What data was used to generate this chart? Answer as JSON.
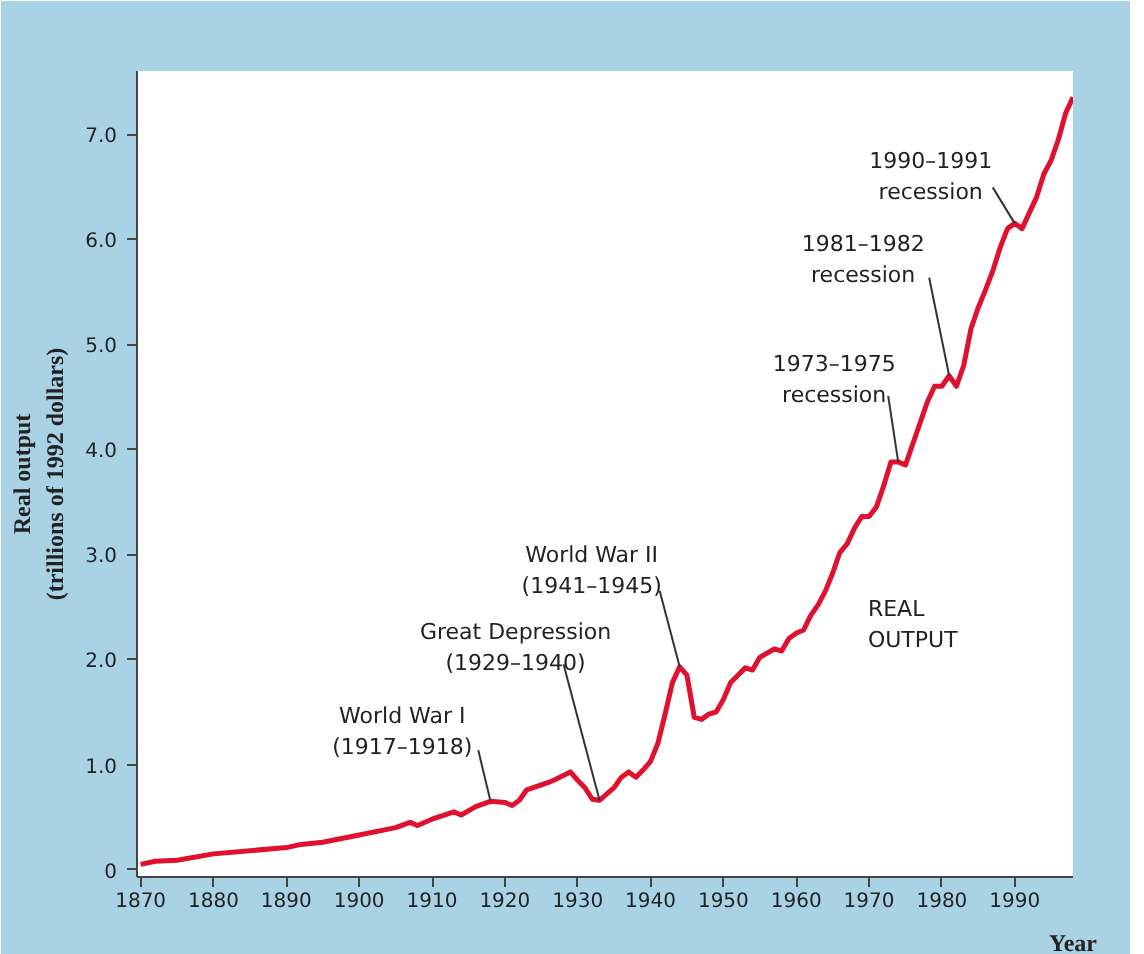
{
  "chart_data": {
    "type": "line",
    "xlabel": "Year",
    "ylabel": "Real output\n(trillions of 1992 dollars)",
    "x": [
      1870,
      1872,
      1875,
      1880,
      1885,
      1890,
      1892,
      1895,
      1900,
      1905,
      1907,
      1908,
      1910,
      1913,
      1914,
      1916,
      1918,
      1920,
      1921,
      1922,
      1923,
      1926,
      1927,
      1929,
      1930,
      1931,
      1932,
      1933,
      1934,
      1935,
      1936,
      1937,
      1938,
      1939,
      1940,
      1941,
      1942,
      1943,
      1944,
      1945,
      1946,
      1947,
      1948,
      1949,
      1950,
      1951,
      1952,
      1953,
      1954,
      1955,
      1956,
      1957,
      1958,
      1959,
      1960,
      1961,
      1962,
      1963,
      1964,
      1965,
      1966,
      1967,
      1968,
      1969,
      1970,
      1971,
      1972,
      1973,
      1974,
      1975,
      1976,
      1977,
      1978,
      1979,
      1980,
      1981,
      1982,
      1983,
      1984,
      1985,
      1986,
      1987,
      1988,
      1989,
      1990,
      1991,
      1992,
      1993,
      1994,
      1995,
      1996,
      1997,
      1998
    ],
    "series": [
      {
        "name": "REAL OUTPUT",
        "color": "#e0102f",
        "values": [
          0.05,
          0.08,
          0.09,
          0.15,
          0.18,
          0.21,
          0.24,
          0.26,
          0.33,
          0.4,
          0.45,
          0.42,
          0.48,
          0.55,
          0.52,
          0.6,
          0.65,
          0.64,
          0.61,
          0.66,
          0.76,
          0.83,
          0.86,
          0.93,
          0.85,
          0.78,
          0.67,
          0.66,
          0.72,
          0.78,
          0.88,
          0.93,
          0.88,
          0.95,
          1.03,
          1.2,
          1.48,
          1.78,
          1.93,
          1.85,
          1.45,
          1.43,
          1.48,
          1.5,
          1.62,
          1.78,
          1.85,
          1.92,
          1.9,
          2.02,
          2.06,
          2.1,
          2.08,
          2.2,
          2.25,
          2.28,
          2.42,
          2.52,
          2.65,
          2.82,
          3.02,
          3.1,
          3.25,
          3.36,
          3.36,
          3.45,
          3.65,
          3.88,
          3.88,
          3.85,
          4.05,
          4.25,
          4.45,
          4.6,
          4.6,
          4.7,
          4.6,
          4.8,
          5.15,
          5.35,
          5.52,
          5.7,
          5.92,
          6.1,
          6.15,
          6.1,
          6.25,
          6.4,
          6.62,
          6.75,
          6.95,
          7.2,
          7.35
        ]
      }
    ],
    "xlim": [
      1869.5,
      1998
    ],
    "ylim": [
      -0.07,
      7.6
    ],
    "xticks": [
      1870,
      1880,
      1890,
      1900,
      1910,
      1920,
      1930,
      1940,
      1950,
      1960,
      1970,
      1980,
      1990
    ],
    "yticks": [
      0,
      {
        "value": 1,
        "label": "1.0"
      },
      {
        "value": 2,
        "label": "2.0"
      },
      {
        "value": 3,
        "label": "3.0"
      },
      {
        "value": 4,
        "label": "4.0"
      },
      {
        "value": 5,
        "label": "5.0"
      },
      {
        "value": 6,
        "label": "6.0"
      },
      {
        "value": 7,
        "label": "7.0"
      }
    ],
    "grid": false,
    "marker": "none",
    "line_style": "solid",
    "annotations": [
      {
        "text": "World War I\n(1917–1918)",
        "x": 1918,
        "y": 0.66
      },
      {
        "text": "Great Depression\n(1929–1940)",
        "x": 1933,
        "y": 0.66
      },
      {
        "text": "World War II\n(1941–1945)",
        "x": 1944,
        "y": 1.93
      },
      {
        "text": "1973–1975\nrecession",
        "x": 1974,
        "y": 3.88
      },
      {
        "text": "1981–1982\nrecession",
        "x": 1981,
        "y": 4.7
      },
      {
        "text": "1990–1991\nrecession",
        "x": 1990,
        "y": 6.15
      }
    ]
  }
}
